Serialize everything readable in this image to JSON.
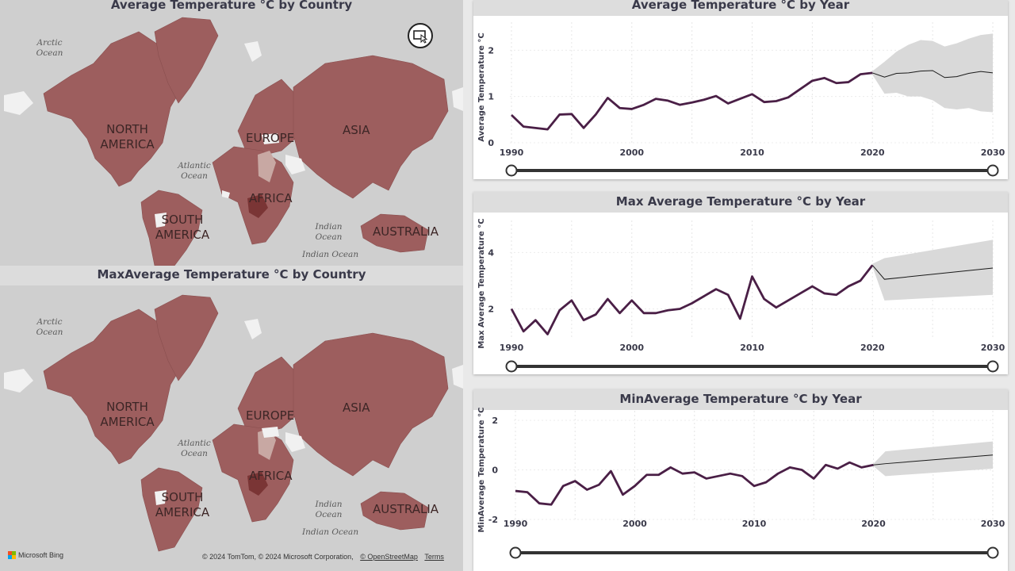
{
  "maps": [
    {
      "title": "Average Temperature °C by Country",
      "labels": {
        "arctic": [
          "Arctic",
          "Ocean"
        ],
        "north_america": [
          "NORTH",
          "AMERICA"
        ],
        "europe": "EUROPE",
        "asia": "ASIA",
        "atlantic": [
          "Atlantic",
          "Ocean"
        ],
        "africa": "AFRICA",
        "south_america": [
          "SOUTH",
          "AMERICA"
        ],
        "indian": [
          "Indian",
          "Ocean"
        ],
        "indian2": "Indian Ocean",
        "australia": "AUSTRALIA"
      }
    },
    {
      "title": "MaxAverage Temperature °C by Country",
      "labels": {
        "arctic": [
          "Arctic",
          "Ocean"
        ],
        "north_america": [
          "NORTH",
          "AMERICA"
        ],
        "europe": "EUROPE",
        "asia": "ASIA",
        "atlantic": [
          "Atlantic",
          "Ocean"
        ],
        "africa": "AFRICA",
        "south_america": [
          "SOUTH",
          "AMERICA"
        ],
        "indian": [
          "Indian",
          "Ocean"
        ],
        "indian2": "Indian Ocean",
        "australia": "AUSTRALIA"
      }
    }
  ],
  "attribution": {
    "copyright": "© 2024 TomTom, © 2024 Microsoft Corporation,",
    "osm": "© OpenStreetMap",
    "terms": "Terms",
    "bing": "Microsoft Bing"
  },
  "colors": {
    "land": "#9d5e5e",
    "land_light": "#c8a8a3",
    "land_dark": "#7a3535",
    "ocean": "#cfcfcf",
    "line": "#4a1f46",
    "band": "#d9d9d9"
  },
  "chart_data": [
    {
      "type": "line",
      "title": "Average Temperature °C by Year",
      "ylabel": "Average Temperature °C",
      "xlabel": "",
      "xlim": [
        1990,
        2030
      ],
      "ylim": [
        0,
        2.4
      ],
      "yticks": [
        0,
        1,
        2
      ],
      "xticks": [
        "1990",
        "2000",
        "2010",
        "2020",
        "2030"
      ],
      "grid": true,
      "series": [
        {
          "x": [
            1990,
            1991,
            1992,
            1993,
            1994,
            1995,
            1996,
            1997,
            1998,
            1999,
            2000,
            2001,
            2002,
            2003,
            2004,
            2005,
            2006,
            2007,
            2008,
            2009,
            2010,
            2011,
            2012,
            2013,
            2014,
            2015,
            2016,
            2017,
            2018,
            2019,
            2020
          ],
          "values": [
            0.6,
            0.35,
            0.32,
            0.29,
            0.61,
            0.62,
            0.32,
            0.61,
            0.97,
            0.75,
            0.73,
            0.82,
            0.95,
            0.91,
            0.82,
            0.87,
            0.93,
            1.01,
            0.85,
            0.95,
            1.05,
            0.88,
            0.9,
            0.98,
            1.16,
            1.34,
            1.4,
            1.29,
            1.31,
            1.48,
            1.51
          ]
        }
      ],
      "forecast": {
        "x": [
          2020,
          2021,
          2022,
          2023,
          2024,
          2025,
          2026,
          2027,
          2028,
          2029,
          2030
        ],
        "values": [
          1.51,
          1.42,
          1.5,
          1.51,
          1.55,
          1.56,
          1.41,
          1.43,
          1.5,
          1.54,
          1.51
        ],
        "upper": [
          1.55,
          1.75,
          1.97,
          2.12,
          2.22,
          2.2,
          2.08,
          2.15,
          2.25,
          2.33,
          2.36
        ],
        "lower": [
          1.47,
          1.06,
          1.08,
          1.0,
          1.0,
          0.92,
          0.75,
          0.72,
          0.75,
          0.68,
          0.66
        ]
      }
    },
    {
      "type": "line",
      "title": "Max Average Temperature °C by Year",
      "ylabel": "Max Average Temperature °C",
      "xlabel": "",
      "xlim": [
        1990,
        2030
      ],
      "ylim": [
        1.0,
        4.8
      ],
      "yticks": [
        2,
        4
      ],
      "xticks": [
        "1990",
        "2000",
        "2010",
        "2020",
        "2030"
      ],
      "grid": true,
      "series": [
        {
          "x": [
            1990,
            1991,
            1992,
            1993,
            1994,
            1995,
            1996,
            1997,
            1998,
            1999,
            2000,
            2001,
            2002,
            2003,
            2004,
            2005,
            2006,
            2007,
            2008,
            2009,
            2010,
            2011,
            2012,
            2013,
            2014,
            2015,
            2016,
            2017,
            2018,
            2019,
            2020
          ],
          "values": [
            2.0,
            1.2,
            1.6,
            1.1,
            1.95,
            2.3,
            1.6,
            1.8,
            2.35,
            1.85,
            2.3,
            1.85,
            1.85,
            1.95,
            2.0,
            2.2,
            2.45,
            2.7,
            2.5,
            1.65,
            3.15,
            2.35,
            2.05,
            2.3,
            2.55,
            2.8,
            2.55,
            2.5,
            2.8,
            3.0,
            3.55
          ]
        }
      ],
      "forecast": {
        "x": [
          2020,
          2021,
          2030
        ],
        "values": [
          3.55,
          3.05,
          3.45
        ],
        "upper": [
          3.6,
          3.8,
          4.45
        ],
        "lower": [
          3.5,
          2.3,
          2.5
        ]
      }
    },
    {
      "type": "line",
      "title": "MinAverage Temperature °C by Year",
      "ylabel": "MinAverage Temperature °C",
      "xlabel": "",
      "xlim": [
        1990,
        2030
      ],
      "ylim": [
        -2.0,
        2.0
      ],
      "yticks": [
        -2,
        0,
        2
      ],
      "xticks": [
        "1990",
        "2000",
        "2010",
        "2020",
        "2030"
      ],
      "grid": true,
      "series": [
        {
          "x": [
            1990,
            1991,
            1992,
            1993,
            1994,
            1995,
            1996,
            1997,
            1998,
            1999,
            2000,
            2001,
            2002,
            2003,
            2004,
            2005,
            2006,
            2007,
            2008,
            2009,
            2010,
            2011,
            2012,
            2013,
            2014,
            2015,
            2016,
            2017,
            2018,
            2019,
            2020
          ],
          "values": [
            -0.85,
            -0.9,
            -1.35,
            -1.4,
            -0.65,
            -0.45,
            -0.8,
            -0.6,
            -0.05,
            -1.0,
            -0.65,
            -0.2,
            -0.2,
            0.1,
            -0.15,
            -0.1,
            -0.35,
            -0.25,
            -0.15,
            -0.25,
            -0.65,
            -0.5,
            -0.15,
            0.1,
            0.0,
            -0.35,
            0.2,
            0.05,
            0.3,
            0.1,
            0.2
          ]
        }
      ],
      "forecast": {
        "x": [
          2020,
          2021,
          2030
        ],
        "values": [
          0.2,
          0.25,
          0.6
        ],
        "upper": [
          0.25,
          0.75,
          1.15
        ],
        "lower": [
          0.15,
          -0.25,
          0.05
        ]
      }
    }
  ]
}
